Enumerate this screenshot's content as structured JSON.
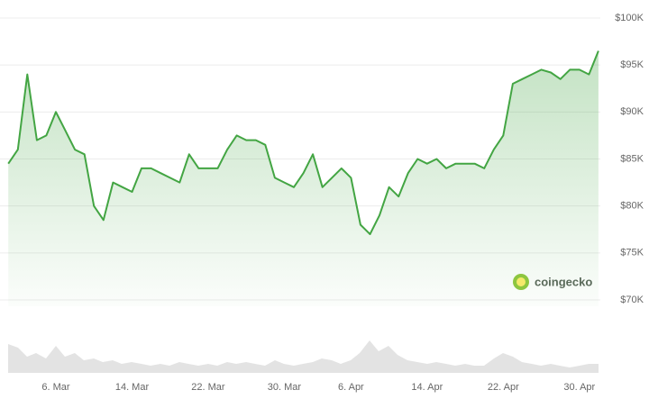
{
  "chart_data": {
    "type": "line",
    "categories": [
      null,
      null,
      null,
      null,
      null,
      "6. Mar",
      null,
      null,
      null,
      null,
      null,
      null,
      null,
      "14. Mar",
      null,
      null,
      null,
      null,
      null,
      null,
      null,
      "22. Mar",
      null,
      null,
      null,
      null,
      null,
      null,
      null,
      "30. Mar",
      null,
      null,
      null,
      null,
      null,
      null,
      "6. Apr",
      null,
      null,
      null,
      null,
      null,
      null,
      null,
      "14. Apr",
      null,
      null,
      null,
      null,
      null,
      null,
      null,
      "22. Apr",
      null,
      null,
      null,
      null,
      null,
      null,
      null,
      "30. Apr",
      null,
      null
    ],
    "series": [
      {
        "color": "#43a543",
        "values": [
          84500,
          86000,
          94000,
          87000,
          87500,
          90000,
          88000,
          86000,
          85500,
          80000,
          78500,
          82500,
          82000,
          81500,
          84000,
          84000,
          83500,
          83000,
          82500,
          85500,
          84000,
          84000,
          84000,
          86000,
          87500,
          87000,
          87000,
          86500,
          83000,
          82500,
          82000,
          83500,
          85500,
          82000,
          83000,
          84000,
          83000,
          78000,
          77000,
          79000,
          82000,
          81000,
          83500,
          85000,
          84500,
          85000,
          84000,
          84500,
          84500,
          84500,
          84000,
          86000,
          87500,
          93000,
          93500,
          94000,
          94500,
          94200,
          93500,
          94500,
          94500,
          94000,
          96500
        ]
      }
    ],
    "ylim": [
      70000,
      100000
    ],
    "yticks": [
      {
        "value": 70000,
        "label": "$70K"
      },
      {
        "value": 75000,
        "label": "$75K"
      },
      {
        "value": 80000,
        "label": "$80K"
      },
      {
        "value": 85000,
        "label": "$85K"
      },
      {
        "value": 90000,
        "label": "$90K"
      },
      {
        "value": 95000,
        "label": "$95K"
      },
      {
        "value": 100000,
        "label": "$100K"
      }
    ],
    "grid": true,
    "watermark": "coingecko"
  }
}
